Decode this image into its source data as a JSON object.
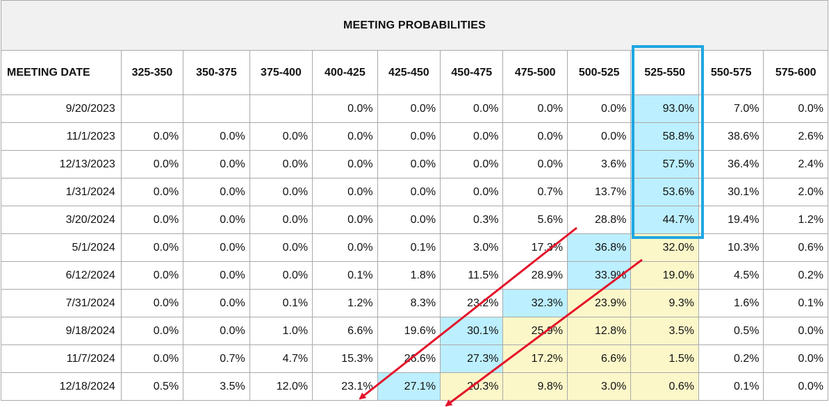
{
  "title": "MEETING PROBABILITIES",
  "header": {
    "date_label": "MEETING DATE",
    "ranges": [
      "325-350",
      "350-375",
      "375-400",
      "400-425",
      "425-450",
      "450-475",
      "475-500",
      "500-525",
      "525-550",
      "550-575",
      "575-600"
    ]
  },
  "highlight": {
    "column": "525-550",
    "rows": [
      "9/20/2023",
      "11/1/2023",
      "12/13/2023",
      "1/31/2024",
      "3/20/2024"
    ],
    "color": "#1fa6e1"
  },
  "colors": {
    "cyan_cell": "#bcefff",
    "yellow_cell": "#fbf7c9",
    "arrow": "#e3122a"
  },
  "rows": [
    {
      "date": "9/20/2023",
      "cells": [
        "",
        "",
        "",
        "0.0%",
        "0.0%",
        "0.0%",
        "0.0%",
        "0.0%",
        "93.0%",
        "7.0%",
        "0.0%"
      ],
      "fills": [
        "",
        "",
        "",
        "",
        "",
        "",
        "",
        "",
        "c",
        "",
        ""
      ]
    },
    {
      "date": "11/1/2023",
      "cells": [
        "0.0%",
        "0.0%",
        "0.0%",
        "0.0%",
        "0.0%",
        "0.0%",
        "0.0%",
        "0.0%",
        "58.8%",
        "38.6%",
        "2.6%"
      ],
      "fills": [
        "",
        "",
        "",
        "",
        "",
        "",
        "",
        "",
        "c",
        "",
        ""
      ]
    },
    {
      "date": "12/13/2023",
      "cells": [
        "0.0%",
        "0.0%",
        "0.0%",
        "0.0%",
        "0.0%",
        "0.0%",
        "0.0%",
        "3.6%",
        "57.5%",
        "36.4%",
        "2.4%"
      ],
      "fills": [
        "",
        "",
        "",
        "",
        "",
        "",
        "",
        "",
        "c",
        "",
        ""
      ]
    },
    {
      "date": "1/31/2024",
      "cells": [
        "0.0%",
        "0.0%",
        "0.0%",
        "0.0%",
        "0.0%",
        "0.0%",
        "0.7%",
        "13.7%",
        "53.6%",
        "30.1%",
        "2.0%"
      ],
      "fills": [
        "",
        "",
        "",
        "",
        "",
        "",
        "",
        "",
        "c",
        "",
        ""
      ]
    },
    {
      "date": "3/20/2024",
      "cells": [
        "0.0%",
        "0.0%",
        "0.0%",
        "0.0%",
        "0.0%",
        "0.3%",
        "5.6%",
        "28.8%",
        "44.7%",
        "19.4%",
        "1.2%"
      ],
      "fills": [
        "",
        "",
        "",
        "",
        "",
        "",
        "",
        "",
        "c",
        "",
        ""
      ]
    },
    {
      "date": "5/1/2024",
      "cells": [
        "0.0%",
        "0.0%",
        "0.0%",
        "0.0%",
        "0.1%",
        "3.0%",
        "17.3%",
        "36.8%",
        "32.0%",
        "10.3%",
        "0.6%"
      ],
      "fills": [
        "",
        "",
        "",
        "",
        "",
        "",
        "",
        "c",
        "y",
        "",
        ""
      ]
    },
    {
      "date": "6/12/2024",
      "cells": [
        "0.0%",
        "0.0%",
        "0.0%",
        "0.1%",
        "1.8%",
        "11.5%",
        "28.9%",
        "33.9%",
        "19.0%",
        "4.5%",
        "0.2%"
      ],
      "fills": [
        "",
        "",
        "",
        "",
        "",
        "",
        "",
        "c",
        "y",
        "",
        ""
      ]
    },
    {
      "date": "7/31/2024",
      "cells": [
        "0.0%",
        "0.0%",
        "0.1%",
        "1.2%",
        "8.3%",
        "23.2%",
        "32.3%",
        "23.9%",
        "9.3%",
        "1.6%",
        "0.1%"
      ],
      "fills": [
        "",
        "",
        "",
        "",
        "",
        "",
        "c",
        "y",
        "y",
        "",
        ""
      ]
    },
    {
      "date": "9/18/2024",
      "cells": [
        "0.0%",
        "0.0%",
        "1.0%",
        "6.6%",
        "19.6%",
        "30.1%",
        "25.9%",
        "12.8%",
        "3.5%",
        "0.5%",
        "0.0%"
      ],
      "fills": [
        "",
        "",
        "",
        "",
        "",
        "c",
        "y",
        "y",
        "y",
        "",
        ""
      ]
    },
    {
      "date": "11/7/2024",
      "cells": [
        "0.0%",
        "0.7%",
        "4.7%",
        "15.3%",
        "26.6%",
        "27.3%",
        "17.2%",
        "6.6%",
        "1.5%",
        "0.2%",
        "0.0%"
      ],
      "fills": [
        "",
        "",
        "",
        "",
        "",
        "c",
        "y",
        "y",
        "y",
        "",
        ""
      ]
    },
    {
      "date": "12/18/2024",
      "cells": [
        "0.5%",
        "3.5%",
        "12.0%",
        "23.1%",
        "27.1%",
        "20.3%",
        "9.8%",
        "3.0%",
        "0.6%",
        "0.1%",
        "0.0%"
      ],
      "fills": [
        "",
        "",
        "",
        "",
        "c",
        "y",
        "y",
        "y",
        "y",
        "",
        ""
      ]
    }
  ]
}
